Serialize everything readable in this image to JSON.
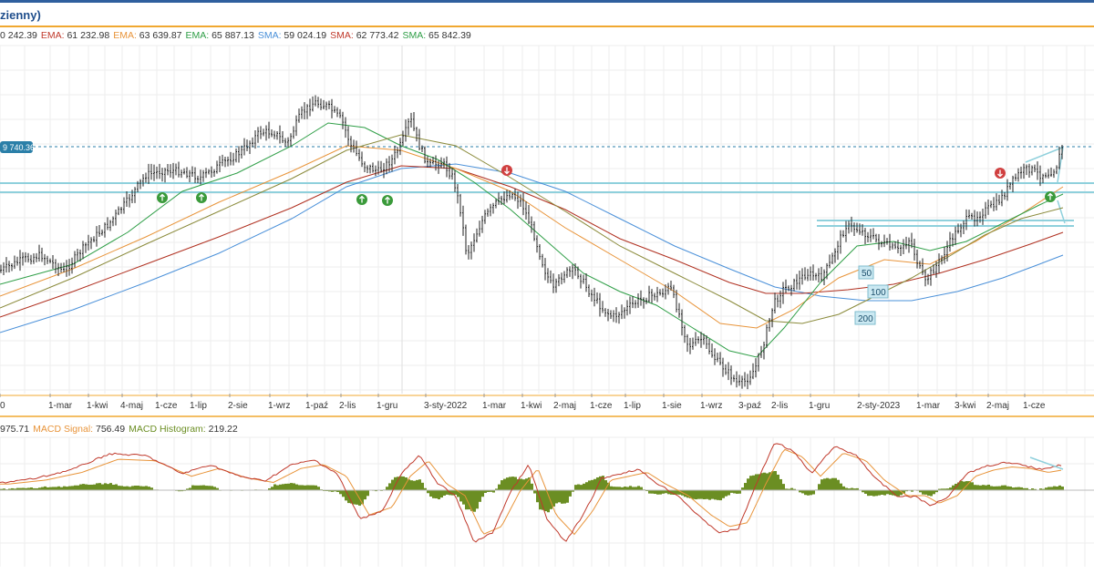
{
  "header": {
    "title": "zienny)"
  },
  "legend_main": [
    {
      "name": "",
      "value": "0 242.39",
      "color": "#666666"
    },
    {
      "name": "EMA:",
      "value": "61 232.98",
      "color": "#c0392b"
    },
    {
      "name": "EMA:",
      "value": "63 639.87",
      "color": "#e8943a"
    },
    {
      "name": "EMA:",
      "value": "65 887.13",
      "color": "#2e9e46"
    },
    {
      "name": "SMA:",
      "value": "59 024.19",
      "color": "#4a90d9"
    },
    {
      "name": "SMA:",
      "value": "62 773.42",
      "color": "#c0392b"
    },
    {
      "name": "SMA:",
      "value": "65 842.39",
      "color": "#2e9e46"
    }
  ],
  "legend_macd": [
    {
      "name": "",
      "value": "975.71",
      "color": "#666666"
    },
    {
      "name": "MACD Signal:",
      "value": "756.49",
      "color": "#e8943a"
    },
    {
      "name": "MACD Histogram:",
      "value": "219.22",
      "color": "#6b8e23"
    }
  ],
  "price_tag": "9 740.36",
  "ma_tags": [
    "50",
    "100",
    "200"
  ],
  "colors": {
    "candle": "#222222",
    "ema_red": "#c0392b",
    "ema_orange": "#e8943a",
    "ema_green": "#2e9e46",
    "sma_blue": "#4a90d9",
    "sma_red": "#b03020",
    "sma_olive": "#8a8a3a",
    "support": "#8fd0dc",
    "macd_line": "#c0392b",
    "macd_signal": "#e8943a",
    "macd_hist": "#6b8e23",
    "arrow_up": "#3a9a3a",
    "arrow_down": "#d04040",
    "price_tag": "#2b7fa8"
  },
  "chart_data": {
    "type": "line",
    "x_tick_labels": [
      "0",
      "1-mar",
      "1-kwi",
      "4-maj",
      "1-cze",
      "1-lip",
      "2-sie",
      "1-wrz",
      "1-paź",
      "2-lis",
      "1-gru",
      "3-sty-2022",
      "1-mar",
      "1-kwi",
      "2-maj",
      "1-cze",
      "1-lip",
      "1-sie",
      "1-wrz",
      "3-paź",
      "2-lis",
      "1-gru",
      "2-sty-2023",
      "1-mar",
      "3-kwi",
      "2-maj",
      "1-cze"
    ],
    "signals": [
      {
        "type": "buy",
        "label": "up-arrow"
      },
      {
        "type": "buy",
        "label": "up-arrow"
      },
      {
        "type": "buy",
        "label": "up-arrow"
      },
      {
        "type": "buy",
        "label": "up-arrow"
      },
      {
        "type": "sell",
        "label": "down-arrow"
      },
      {
        "type": "sell",
        "label": "down-arrow"
      },
      {
        "type": "buy",
        "label": "up-arrow"
      }
    ],
    "grid": true
  }
}
